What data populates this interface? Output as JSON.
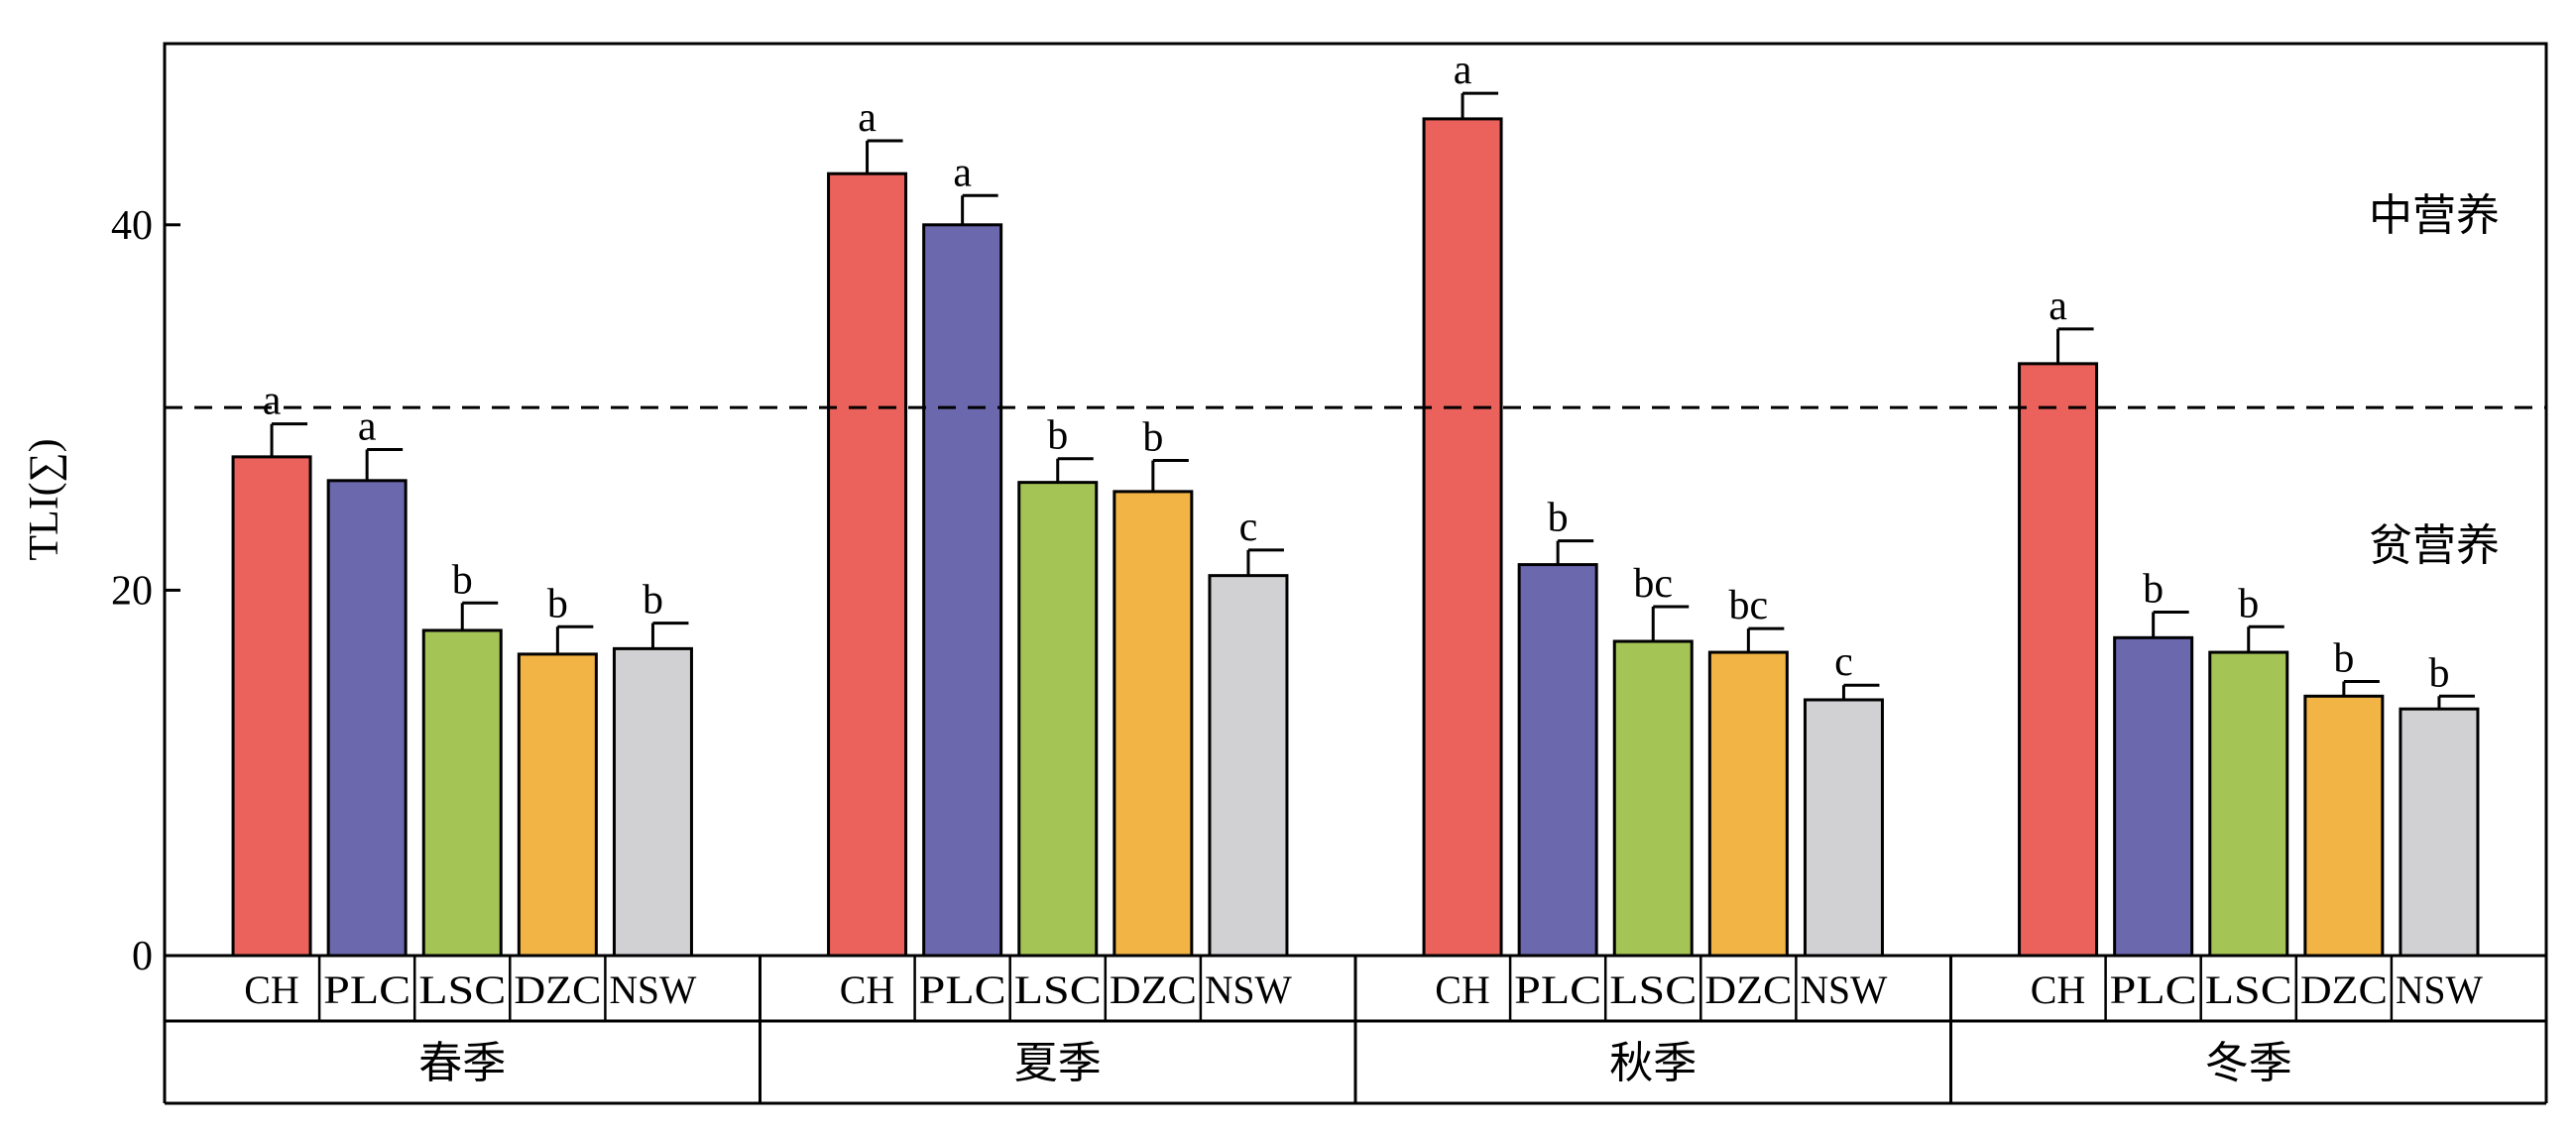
{
  "chart_data": {
    "type": "bar",
    "ylabel": "TLI(∑)",
    "ylim": [
      0,
      50
    ],
    "yticks": [
      0,
      20,
      40
    ],
    "threshold": {
      "value": 30,
      "style": "dashed",
      "label_above": "中营养",
      "label_below": "贫营养"
    },
    "colors": {
      "CH": "#EA625B",
      "PLC": "#6B68AE",
      "LSC": "#A5C456",
      "DZC": "#F2B444",
      "NSW": "#D1D1D3"
    },
    "groups": [
      {
        "name": "春季",
        "bars": [
          {
            "category": "CH",
            "value": 27.3,
            "error": 1.8,
            "letter": "a"
          },
          {
            "category": "PLC",
            "value": 26.0,
            "error": 1.7,
            "letter": "a"
          },
          {
            "category": "LSC",
            "value": 17.8,
            "error": 1.5,
            "letter": "b"
          },
          {
            "category": "DZC",
            "value": 16.5,
            "error": 1.5,
            "letter": "b"
          },
          {
            "category": "NSW",
            "value": 16.8,
            "error": 1.4,
            "letter": "b"
          }
        ]
      },
      {
        "name": "夏季",
        "bars": [
          {
            "category": "CH",
            "value": 42.8,
            "error": 1.8,
            "letter": "a"
          },
          {
            "category": "PLC",
            "value": 40.0,
            "error": 1.6,
            "letter": "a"
          },
          {
            "category": "LSC",
            "value": 25.9,
            "error": 1.3,
            "letter": "b"
          },
          {
            "category": "DZC",
            "value": 25.4,
            "error": 1.7,
            "letter": "b"
          },
          {
            "category": "NSW",
            "value": 20.8,
            "error": 1.4,
            "letter": "c"
          }
        ]
      },
      {
        "name": "秋季",
        "bars": [
          {
            "category": "CH",
            "value": 45.8,
            "error": 1.4,
            "letter": "a"
          },
          {
            "category": "PLC",
            "value": 21.4,
            "error": 1.3,
            "letter": "b"
          },
          {
            "category": "LSC",
            "value": 17.2,
            "error": 1.9,
            "letter": "bc"
          },
          {
            "category": "DZC",
            "value": 16.6,
            "error": 1.3,
            "letter": "bc"
          },
          {
            "category": "NSW",
            "value": 14.0,
            "error": 0.8,
            "letter": "c"
          }
        ]
      },
      {
        "name": "冬季",
        "bars": [
          {
            "category": "CH",
            "value": 32.4,
            "error": 1.9,
            "letter": "a"
          },
          {
            "category": "PLC",
            "value": 17.4,
            "error": 1.4,
            "letter": "b"
          },
          {
            "category": "LSC",
            "value": 16.6,
            "error": 1.4,
            "letter": "b"
          },
          {
            "category": "DZC",
            "value": 14.2,
            "error": 0.8,
            "letter": "b"
          },
          {
            "category": "NSW",
            "value": 13.5,
            "error": 0.7,
            "letter": "b"
          }
        ]
      }
    ]
  }
}
